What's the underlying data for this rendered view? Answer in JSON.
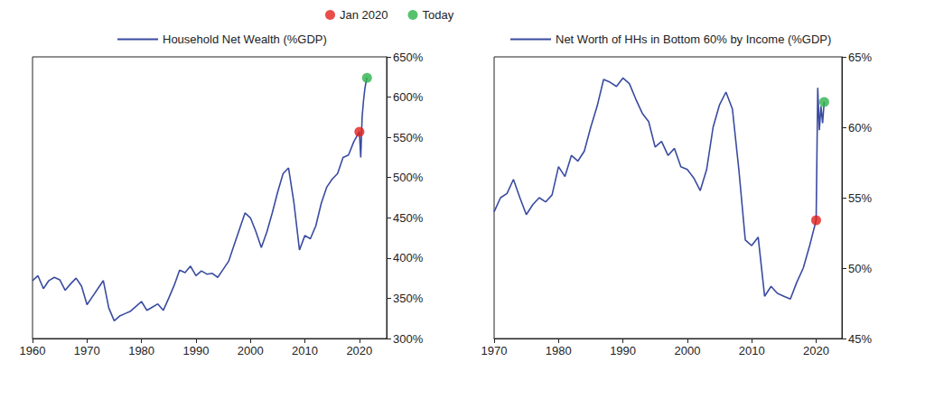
{
  "chart_data": [
    {
      "type": "line",
      "legend": "top",
      "grid": false,
      "xlim": [
        1960,
        2025
      ],
      "xticks": [
        1960,
        1970,
        1980,
        1990,
        2000,
        2010,
        2020
      ],
      "ylim": [
        300,
        650
      ],
      "yticks": [
        {
          "value": 300,
          "label": "300%"
        },
        {
          "value": 350,
          "label": "350%"
        },
        {
          "value": 400,
          "label": "400%"
        },
        {
          "value": 450,
          "label": "450%"
        },
        {
          "value": 500,
          "label": "500%"
        },
        {
          "value": 550,
          "label": "550%"
        },
        {
          "value": 600,
          "label": "600%"
        },
        {
          "value": 650,
          "label": "650%"
        }
      ],
      "x": [
        1960,
        1961,
        1962,
        1963,
        1964,
        1965,
        1966,
        1967,
        1968,
        1969,
        1970,
        1971,
        1972,
        1973,
        1974,
        1975,
        1976,
        1977,
        1978,
        1979,
        1980,
        1981,
        1982,
        1983,
        1984,
        1985,
        1986,
        1987,
        1988,
        1989,
        1990,
        1991,
        1992,
        1993,
        1994,
        1995,
        1996,
        1997,
        1998,
        1999,
        2000,
        2001,
        2002,
        2003,
        2004,
        2005,
        2006,
        2007,
        2008,
        2009,
        2010,
        2011,
        2012,
        2013,
        2014,
        2015,
        2016,
        2017,
        2018,
        2019,
        2020,
        2020.25,
        2020.5,
        2020.75,
        2021,
        2021.25,
        2021.4
      ],
      "series": [
        {
          "name": "Household Net Wealth (%GDP)",
          "type": "line",
          "color": "#3a4ba0",
          "values": [
            372,
            378,
            362,
            372,
            376,
            373,
            360,
            368,
            375,
            365,
            342,
            352,
            362,
            372,
            338,
            322,
            328,
            331,
            334,
            340,
            346,
            335,
            339,
            343,
            335,
            350,
            366,
            385,
            382,
            390,
            378,
            384,
            380,
            381,
            376,
            386,
            396,
            416,
            436,
            456,
            450,
            433,
            413,
            432,
            456,
            482,
            505,
            512,
            468,
            410,
            428,
            424,
            440,
            468,
            488,
            498,
            505,
            525,
            528,
            545,
            557,
            525,
            575,
            595,
            610,
            620,
            624
          ]
        },
        {
          "name": "Jan 2020",
          "type": "scatter",
          "color": "#e3211c",
          "x": [
            2020
          ],
          "values": [
            557
          ]
        },
        {
          "name": "Today",
          "type": "scatter",
          "color": "#2db34a",
          "x": [
            2021.4
          ],
          "values": [
            624
          ]
        }
      ]
    },
    {
      "type": "line",
      "legend": "top",
      "grid": false,
      "xlim": [
        1970,
        2024
      ],
      "xticks": [
        1970,
        1980,
        1990,
        2000,
        2010,
        2020
      ],
      "ylim": [
        45,
        65
      ],
      "yticks": [
        {
          "value": 45,
          "label": "45%"
        },
        {
          "value": 50,
          "label": "50%"
        },
        {
          "value": 55,
          "label": "55%"
        },
        {
          "value": 60,
          "label": "60%"
        },
        {
          "value": 65,
          "label": "65%"
        }
      ],
      "x": [
        1970,
        1971,
        1972,
        1973,
        1974,
        1975,
        1976,
        1977,
        1978,
        1979,
        1980,
        1981,
        1982,
        1983,
        1984,
        1985,
        1986,
        1987,
        1988,
        1989,
        1990,
        1991,
        1992,
        1993,
        1994,
        1995,
        1996,
        1997,
        1998,
        1999,
        2000,
        2001,
        2002,
        2003,
        2004,
        2005,
        2006,
        2007,
        2008,
        2009,
        2010,
        2011,
        2012,
        2013,
        2014,
        2015,
        2016,
        2017,
        2018,
        2019,
        2020,
        2020.25,
        2020.5,
        2020.75,
        2021,
        2021.25
      ],
      "series": [
        {
          "name": "Net Worth of HHs in Bottom 60% by Income (%GDP)",
          "type": "line",
          "color": "#3a4ba0",
          "values": [
            54,
            55,
            55.3,
            56.3,
            55,
            53.8,
            54.5,
            55,
            54.7,
            55.2,
            57.2,
            56.5,
            58,
            57.6,
            58.3,
            60,
            61.5,
            63.4,
            63.2,
            62.9,
            63.5,
            63.1,
            62,
            61,
            60.4,
            58.6,
            59,
            58,
            58.5,
            57.2,
            57,
            56.4,
            55.5,
            57,
            60,
            61.6,
            62.5,
            61.3,
            57,
            52,
            51.6,
            52.2,
            48,
            48.7,
            48.2,
            48,
            47.8,
            49,
            50,
            51.6,
            53.4,
            62.8,
            59.8,
            61.5,
            60.3,
            61.8
          ]
        },
        {
          "name": "Jan 2020",
          "type": "scatter",
          "color": "#e3211c",
          "x": [
            2020
          ],
          "values": [
            53.4
          ]
        },
        {
          "name": "Today",
          "type": "scatter",
          "color": "#2db34a",
          "x": [
            2021.25
          ],
          "values": [
            61.8
          ]
        }
      ]
    }
  ]
}
